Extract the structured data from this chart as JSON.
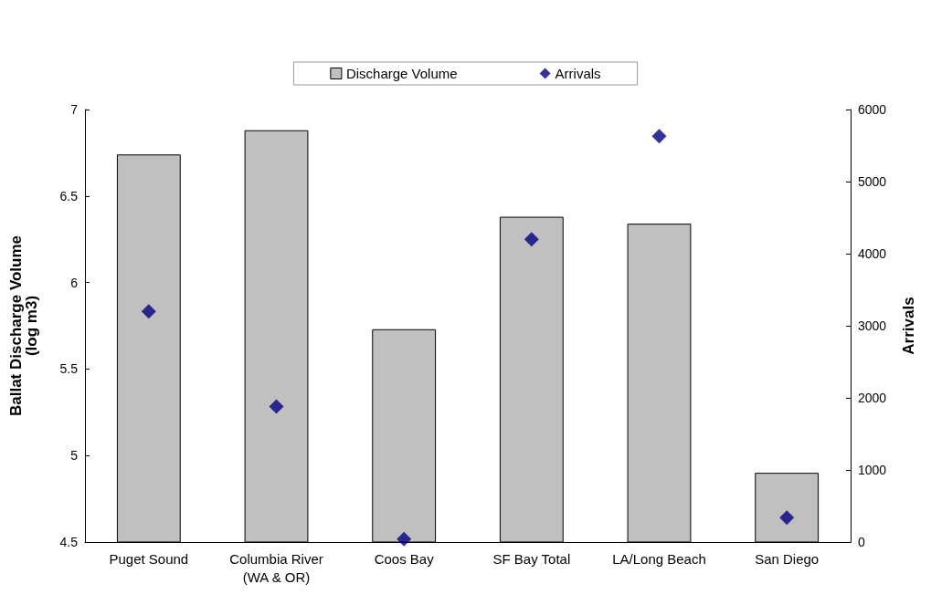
{
  "chart_data": {
    "type": "bar",
    "categories": [
      "Puget Sound",
      "Columbia River\n(WA & OR)",
      "Coos Bay",
      "SF Bay Total",
      "LA/Long Beach",
      "San Diego"
    ],
    "series": [
      {
        "name": "Discharge Volume",
        "color": "#c0c0c0",
        "values": [
          6.74,
          6.88,
          5.73,
          6.38,
          6.34,
          4.9
        ]
      },
      {
        "name": "Arrivals",
        "type": "scatter",
        "axis": "y2",
        "color": "#000080",
        "marker": "diamond",
        "values": [
          3200,
          1880,
          40,
          4200,
          5630,
          340
        ]
      }
    ],
    "ylabel": "Ballat Discharge Volume\n(log m3)",
    "y2label": "Arrivals",
    "ylim": [
      4.5,
      7
    ],
    "yticks": [
      4.5,
      5,
      5.5,
      6,
      6.5,
      7
    ],
    "y2lim": [
      0,
      6000
    ],
    "y2ticks": [
      0,
      1000,
      2000,
      3000,
      4000,
      5000,
      6000
    ],
    "grid": false,
    "legend": "top"
  }
}
